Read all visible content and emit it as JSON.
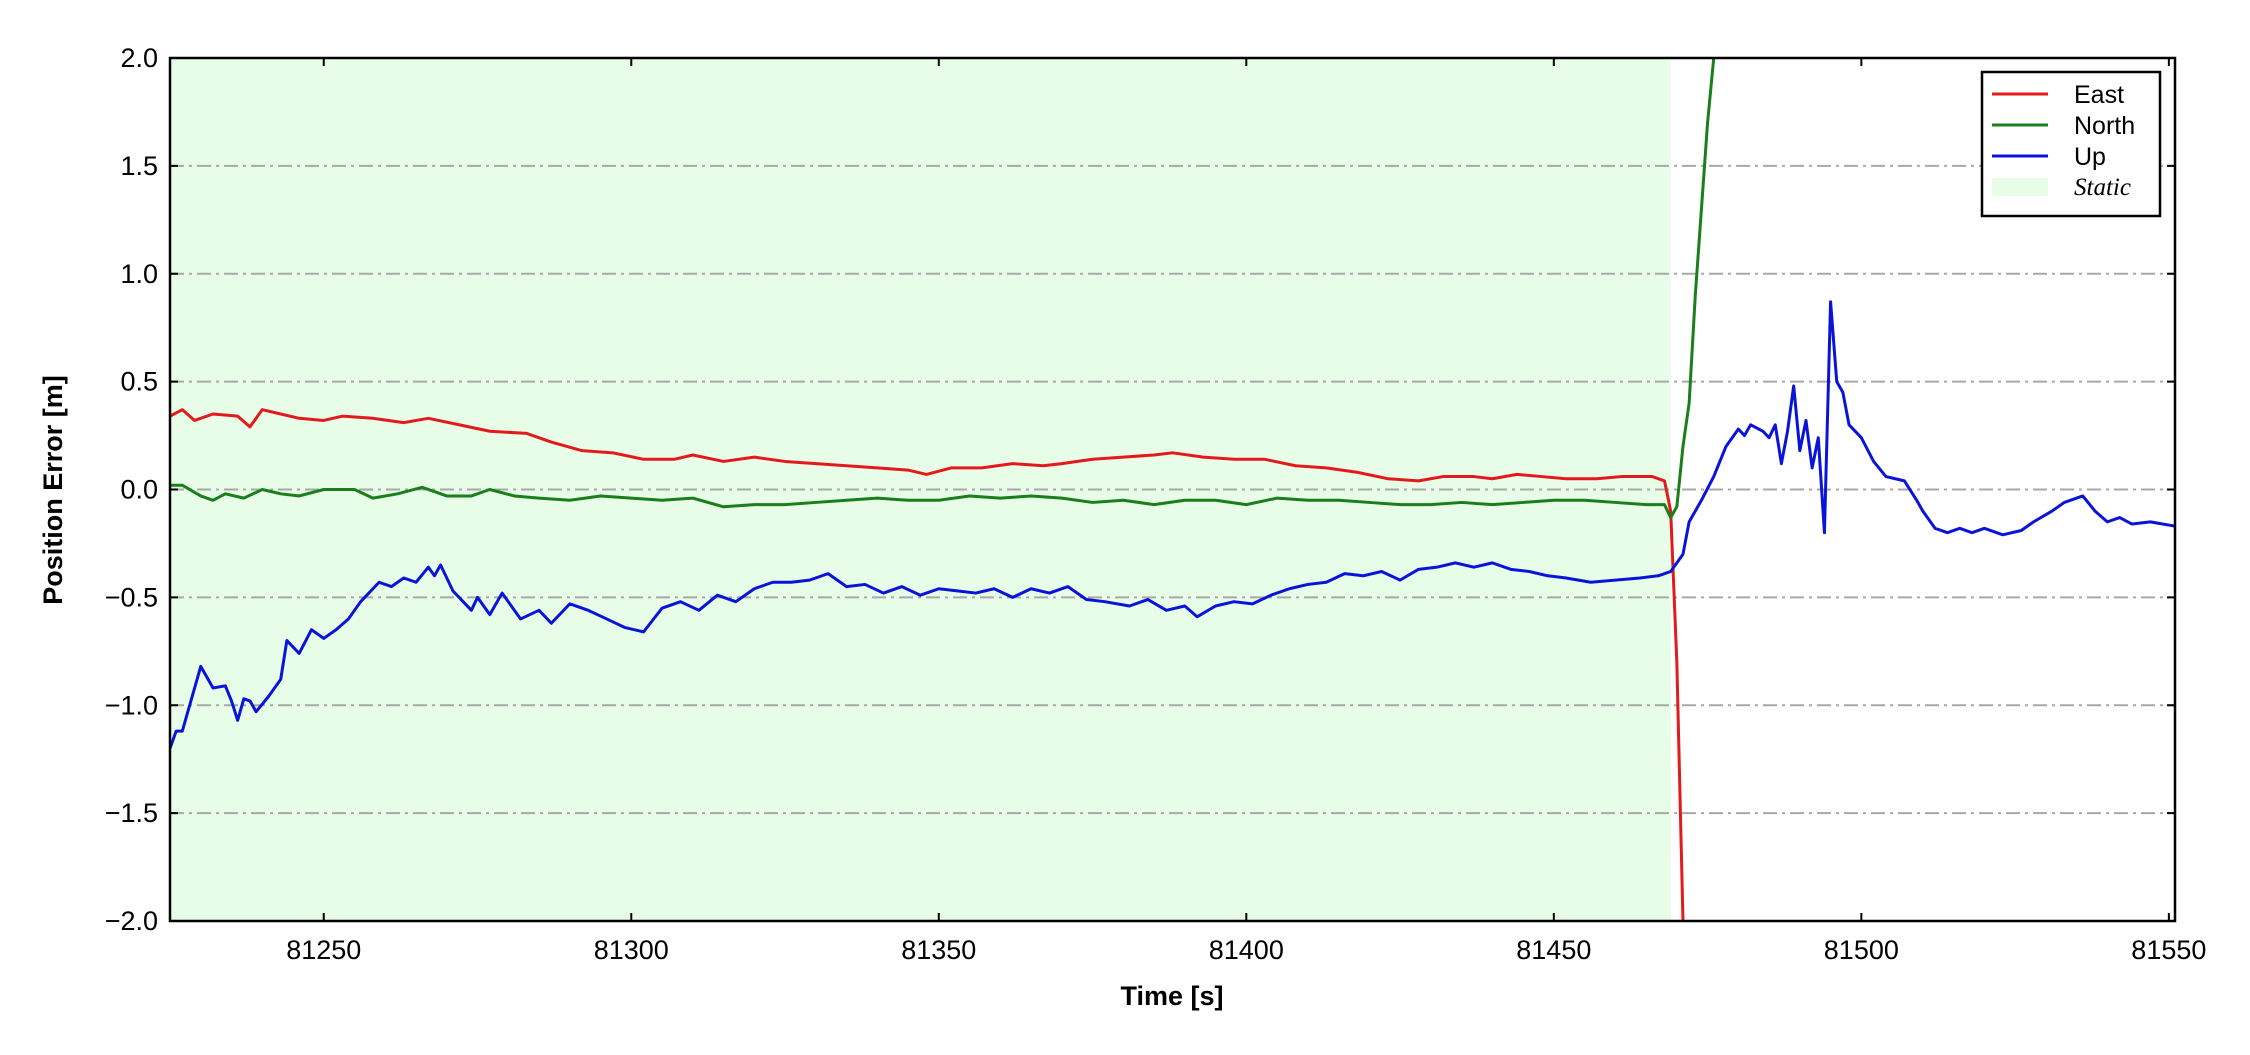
{
  "chart_data": {
    "type": "line",
    "xlabel": "Time [s]",
    "ylabel": "Position Error [m]",
    "xlim": [
      81225,
      81551
    ],
    "ylim": [
      -2.0,
      2.0
    ],
    "xticks": [
      81250,
      81300,
      81350,
      81400,
      81450,
      81500,
      81550
    ],
    "yticks": [
      {
        "value": 2.0,
        "label": "2.0"
      },
      {
        "value": 1.5,
        "label": "1.5"
      },
      {
        "value": 1.0,
        "label": "1.0"
      },
      {
        "value": 0.5,
        "label": "0.5"
      },
      {
        "value": 0.0,
        "label": "0.0"
      },
      {
        "value": -0.5,
        "label": "−0.5"
      },
      {
        "value": -1.0,
        "label": "−1.0"
      },
      {
        "value": -1.5,
        "label": "−1.5"
      },
      {
        "value": -2.0,
        "label": "−2.0"
      }
    ],
    "grid": true,
    "legend": "upper right",
    "shaded_region": {
      "label": "Static",
      "x": [
        81225,
        81469
      ],
      "color": "#e8fde8"
    },
    "series": [
      {
        "name": "East",
        "color": "#e31a1c",
        "x": [
          81225,
          81227,
          81229,
          81232,
          81236,
          81238,
          81240,
          81243,
          81246,
          81250,
          81253,
          81258,
          81263,
          81267,
          81272,
          81277,
          81283,
          81287,
          81292,
          81297,
          81302,
          81307,
          81310,
          81315,
          81320,
          81325,
          81330,
          81335,
          81340,
          81345,
          81348,
          81352,
          81357,
          81362,
          81367,
          81370,
          81375,
          81380,
          81385,
          81388,
          81393,
          81398,
          81403,
          81408,
          81413,
          81418,
          81423,
          81428,
          81432,
          81437,
          81440,
          81444,
          81448,
          81452,
          81457,
          81461,
          81466,
          81468,
          81469,
          81470,
          81471
        ],
        "values": [
          0.34,
          0.37,
          0.32,
          0.35,
          0.34,
          0.29,
          0.37,
          0.35,
          0.33,
          0.32,
          0.34,
          0.33,
          0.31,
          0.33,
          0.3,
          0.27,
          0.26,
          0.22,
          0.18,
          0.17,
          0.14,
          0.14,
          0.16,
          0.13,
          0.15,
          0.13,
          0.12,
          0.11,
          0.1,
          0.09,
          0.07,
          0.1,
          0.1,
          0.12,
          0.11,
          0.12,
          0.14,
          0.15,
          0.16,
          0.17,
          0.15,
          0.14,
          0.14,
          0.11,
          0.1,
          0.08,
          0.05,
          0.04,
          0.06,
          0.06,
          0.05,
          0.07,
          0.06,
          0.05,
          0.05,
          0.06,
          0.06,
          0.04,
          -0.1,
          -0.8,
          -2.0
        ]
      },
      {
        "name": "North",
        "color": "#1a7f1a",
        "x": [
          81225,
          81227,
          81230,
          81232,
          81234,
          81237,
          81240,
          81243,
          81246,
          81250,
          81255,
          81258,
          81262,
          81266,
          81270,
          81274,
          81277,
          81281,
          81285,
          81290,
          81295,
          81300,
          81305,
          81310,
          81315,
          81320,
          81325,
          81330,
          81335,
          81340,
          81345,
          81350,
          81355,
          81360,
          81365,
          81370,
          81375,
          81380,
          81385,
          81390,
          81395,
          81400,
          81405,
          81410,
          81415,
          81420,
          81425,
          81430,
          81435,
          81440,
          81445,
          81450,
          81455,
          81460,
          81465,
          81468,
          81469,
          81470,
          81471,
          81472,
          81473,
          81474,
          81475,
          81476
        ],
        "values": [
          0.02,
          0.02,
          -0.03,
          -0.05,
          -0.02,
          -0.04,
          0.0,
          -0.02,
          -0.03,
          0.0,
          0.0,
          -0.04,
          -0.02,
          0.01,
          -0.03,
          -0.03,
          0.0,
          -0.03,
          -0.04,
          -0.05,
          -0.03,
          -0.04,
          -0.05,
          -0.04,
          -0.08,
          -0.07,
          -0.07,
          -0.06,
          -0.05,
          -0.04,
          -0.05,
          -0.05,
          -0.03,
          -0.04,
          -0.03,
          -0.04,
          -0.06,
          -0.05,
          -0.07,
          -0.05,
          -0.05,
          -0.07,
          -0.04,
          -0.05,
          -0.05,
          -0.06,
          -0.07,
          -0.07,
          -0.06,
          -0.07,
          -0.06,
          -0.05,
          -0.05,
          -0.06,
          -0.07,
          -0.07,
          -0.13,
          -0.08,
          0.2,
          0.4,
          0.9,
          1.3,
          1.7,
          2.0
        ]
      },
      {
        "name": "Up",
        "color": "#0a14d8",
        "x": [
          81225,
          81226,
          81227,
          81229,
          81230,
          81232,
          81234,
          81235,
          81236,
          81237,
          81238,
          81239,
          81241,
          81243,
          81244,
          81246,
          81248,
          81250,
          81252,
          81254,
          81256,
          81259,
          81261,
          81263,
          81265,
          81267,
          81268,
          81269,
          81271,
          81274,
          81275,
          81277,
          81279,
          81282,
          81285,
          81287,
          81290,
          81293,
          81296,
          81299,
          81302,
          81305,
          81308,
          81311,
          81314,
          81317,
          81320,
          81323,
          81326,
          81329,
          81332,
          81335,
          81338,
          81341,
          81344,
          81347,
          81350,
          81353,
          81356,
          81359,
          81362,
          81365,
          81368,
          81371,
          81374,
          81377,
          81381,
          81384,
          81387,
          81390,
          81392,
          81395,
          81398,
          81401,
          81404,
          81407,
          81410,
          81413,
          81416,
          81419,
          81422,
          81425,
          81428,
          81431,
          81434,
          81437,
          81440,
          81443,
          81446,
          81449,
          81452,
          81456,
          81460,
          81464,
          81467,
          81469,
          81471,
          81472,
          81474,
          81476,
          81478,
          81480,
          81481,
          81482,
          81484,
          81485,
          81486,
          81487,
          81488,
          81489,
          81490,
          81491,
          81492,
          81493,
          81494,
          81495,
          81496,
          81497,
          81498,
          81500,
          81502,
          81504,
          81507,
          81509,
          81510,
          81512,
          81514,
          81516,
          81518,
          81520,
          81523,
          81526,
          81528,
          81531,
          81533,
          81536,
          81538,
          81540,
          81542,
          81544,
          81547,
          81551
        ],
        "values": [
          -1.2,
          -1.12,
          -1.12,
          -0.92,
          -0.82,
          -0.92,
          -0.91,
          -0.98,
          -1.07,
          -0.97,
          -0.98,
          -1.03,
          -0.96,
          -0.88,
          -0.7,
          -0.76,
          -0.65,
          -0.69,
          -0.65,
          -0.6,
          -0.52,
          -0.43,
          -0.45,
          -0.41,
          -0.43,
          -0.36,
          -0.4,
          -0.35,
          -0.47,
          -0.56,
          -0.5,
          -0.58,
          -0.48,
          -0.6,
          -0.56,
          -0.62,
          -0.53,
          -0.56,
          -0.6,
          -0.64,
          -0.66,
          -0.55,
          -0.52,
          -0.56,
          -0.49,
          -0.52,
          -0.46,
          -0.43,
          -0.43,
          -0.42,
          -0.39,
          -0.45,
          -0.44,
          -0.48,
          -0.45,
          -0.49,
          -0.46,
          -0.47,
          -0.48,
          -0.46,
          -0.5,
          -0.46,
          -0.48,
          -0.45,
          -0.51,
          -0.52,
          -0.54,
          -0.51,
          -0.56,
          -0.54,
          -0.59,
          -0.54,
          -0.52,
          -0.53,
          -0.49,
          -0.46,
          -0.44,
          -0.43,
          -0.39,
          -0.4,
          -0.38,
          -0.42,
          -0.37,
          -0.36,
          -0.34,
          -0.36,
          -0.34,
          -0.37,
          -0.38,
          -0.4,
          -0.41,
          -0.43,
          -0.42,
          -0.41,
          -0.4,
          -0.38,
          -0.3,
          -0.15,
          -0.05,
          0.06,
          0.2,
          0.28,
          0.25,
          0.3,
          0.27,
          0.24,
          0.3,
          0.12,
          0.27,
          0.48,
          0.18,
          0.32,
          0.1,
          0.24,
          -0.2,
          0.87,
          0.5,
          0.45,
          0.3,
          0.24,
          0.13,
          0.06,
          0.04,
          -0.05,
          -0.1,
          -0.18,
          -0.2,
          -0.18,
          -0.2,
          -0.18,
          -0.21,
          -0.19,
          -0.15,
          -0.1,
          -0.06,
          -0.03,
          -0.1,
          -0.15,
          -0.13,
          -0.16,
          -0.15,
          -0.17
        ]
      }
    ]
  }
}
